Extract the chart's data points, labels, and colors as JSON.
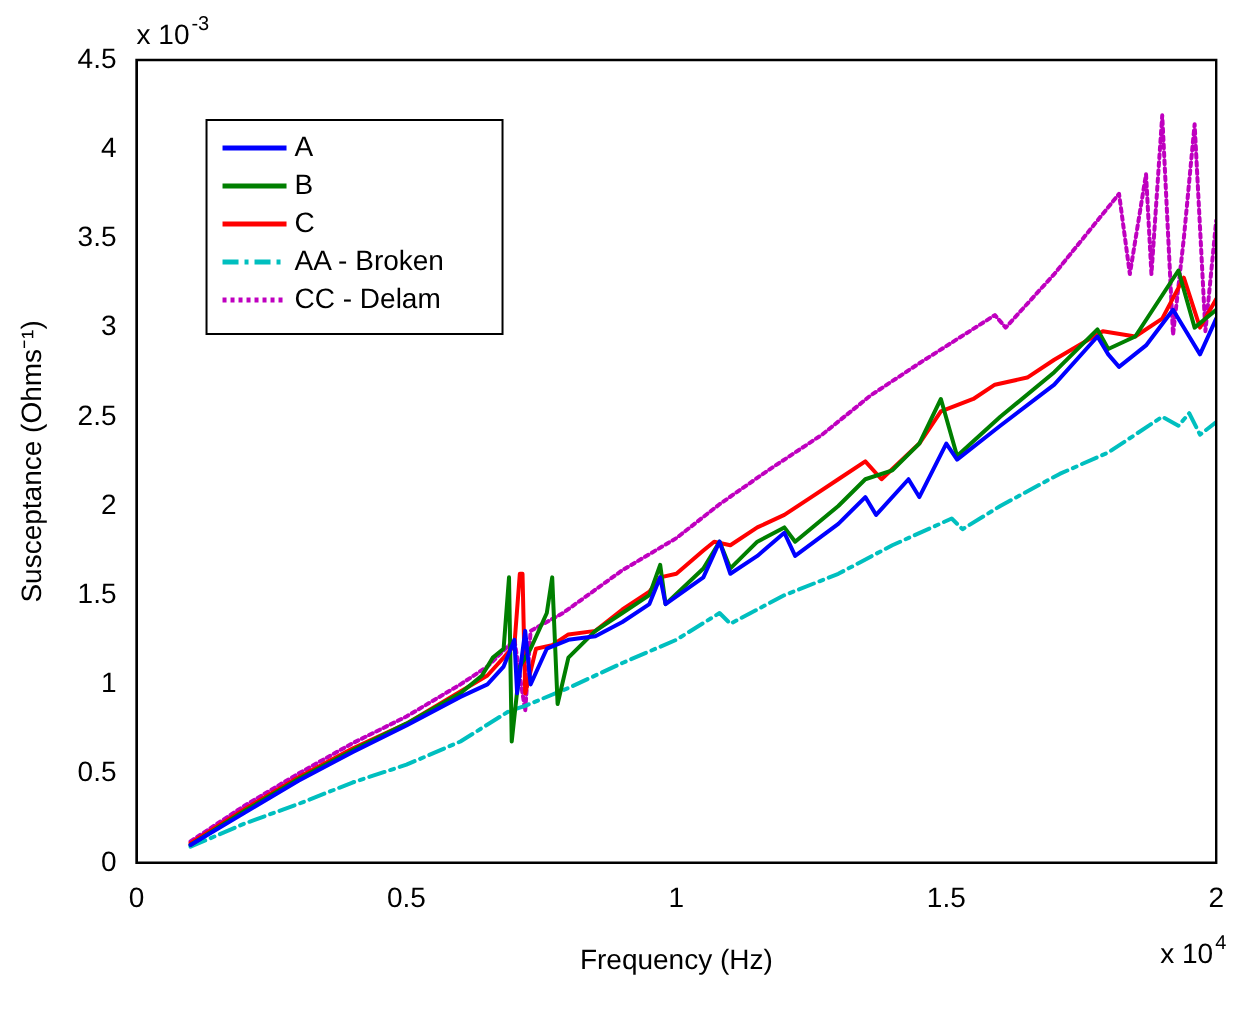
{
  "chart_data": {
    "type": "line",
    "xlabel": "Frequency (Hz)",
    "ylabel": "Susceptance (Ohms⁻¹)",
    "annotations": [
      "x 10$^{-3}$",
      "x 10$^{4}$"
    ],
    "xlim": [
      0,
      2
    ],
    "xticks": [
      0,
      0.5,
      1,
      1.5,
      2
    ],
    "ylim": [
      0,
      4.5
    ],
    "yticks": [
      0,
      0.5,
      1,
      1.5,
      2,
      2.5,
      3,
      3.5,
      4,
      4.5
    ],
    "grid": false,
    "legend": "top left",
    "marker": "none",
    "series": [
      {
        "name": "A",
        "color": "#0000ff",
        "line_style": "solid",
        "x": [
          0.1,
          0.2,
          0.3,
          0.4,
          0.5,
          0.6,
          0.65,
          0.68,
          0.7,
          0.705,
          0.72,
          0.73,
          0.76,
          0.8,
          0.85,
          0.9,
          0.95,
          0.97,
          0.98,
          1.05,
          1.08,
          1.1,
          1.15,
          1.2,
          1.22,
          1.3,
          1.35,
          1.37,
          1.43,
          1.45,
          1.5,
          1.52,
          1.6,
          1.7,
          1.78,
          1.8,
          1.82,
          1.87,
          1.92,
          1.95,
          1.97,
          2.0
        ],
        "values": [
          0.1,
          0.28,
          0.46,
          0.62,
          0.77,
          0.93,
          1.0,
          1.1,
          1.25,
          0.95,
          1.3,
          1.0,
          1.2,
          1.25,
          1.27,
          1.35,
          1.45,
          1.6,
          1.45,
          1.6,
          1.8,
          1.62,
          1.72,
          1.85,
          1.72,
          1.9,
          2.05,
          1.95,
          2.15,
          2.05,
          2.35,
          2.26,
          2.45,
          2.68,
          2.95,
          2.85,
          2.78,
          2.9,
          3.1,
          2.95,
          2.85,
          3.05
        ]
      },
      {
        "name": "B",
        "color": "#007f00",
        "line_style": "solid",
        "x": [
          0.1,
          0.2,
          0.3,
          0.4,
          0.5,
          0.6,
          0.64,
          0.66,
          0.68,
          0.69,
          0.695,
          0.71,
          0.73,
          0.76,
          0.77,
          0.78,
          0.8,
          0.85,
          0.9,
          0.95,
          0.97,
          0.98,
          1.05,
          1.08,
          1.1,
          1.15,
          1.2,
          1.22,
          1.3,
          1.35,
          1.4,
          1.45,
          1.49,
          1.52,
          1.6,
          1.7,
          1.78,
          1.8,
          1.85,
          1.93,
          1.96,
          2.0
        ],
        "values": [
          0.1,
          0.29,
          0.47,
          0.63,
          0.78,
          0.95,
          1.05,
          1.15,
          1.2,
          1.6,
          0.68,
          1.1,
          1.2,
          1.4,
          1.6,
          0.89,
          1.15,
          1.3,
          1.4,
          1.5,
          1.67,
          1.45,
          1.65,
          1.8,
          1.65,
          1.8,
          1.88,
          1.8,
          2.0,
          2.15,
          2.2,
          2.35,
          2.6,
          2.28,
          2.5,
          2.75,
          2.99,
          2.88,
          2.95,
          3.32,
          3.0,
          3.1
        ]
      },
      {
        "name": "C",
        "color": "#ff0000",
        "line_style": "solid",
        "x": [
          0.1,
          0.2,
          0.3,
          0.4,
          0.5,
          0.6,
          0.65,
          0.68,
          0.7,
          0.71,
          0.715,
          0.72,
          0.74,
          0.77,
          0.8,
          0.85,
          0.9,
          0.95,
          0.97,
          1.0,
          1.05,
          1.07,
          1.1,
          1.15,
          1.2,
          1.25,
          1.3,
          1.35,
          1.38,
          1.45,
          1.49,
          1.55,
          1.59,
          1.65,
          1.7,
          1.79,
          1.85,
          1.9,
          1.94,
          1.97,
          2.0
        ],
        "values": [
          0.11,
          0.3,
          0.48,
          0.64,
          0.78,
          0.96,
          1.05,
          1.15,
          1.22,
          1.62,
          1.62,
          0.95,
          1.2,
          1.22,
          1.28,
          1.3,
          1.42,
          1.52,
          1.6,
          1.62,
          1.75,
          1.8,
          1.78,
          1.88,
          1.95,
          2.05,
          2.15,
          2.25,
          2.15,
          2.35,
          2.53,
          2.6,
          2.68,
          2.72,
          2.82,
          2.98,
          2.95,
          3.05,
          3.28,
          3.0,
          3.16
        ]
      },
      {
        "name": "AA - Broken",
        "color": "#00bfbf",
        "line_style": "dashed",
        "x": [
          0.1,
          0.2,
          0.3,
          0.4,
          0.5,
          0.6,
          0.69,
          0.72,
          0.8,
          0.9,
          1.0,
          1.08,
          1.1,
          1.2,
          1.3,
          1.4,
          1.51,
          1.53,
          1.6,
          1.71,
          1.8,
          1.9,
          1.93,
          1.95,
          1.97,
          2.0
        ],
        "values": [
          0.09,
          0.22,
          0.33,
          0.45,
          0.55,
          0.68,
          0.85,
          0.88,
          0.98,
          1.12,
          1.25,
          1.4,
          1.34,
          1.5,
          1.62,
          1.78,
          1.93,
          1.87,
          2.0,
          2.18,
          2.3,
          2.5,
          2.45,
          2.52,
          2.4,
          2.47
        ]
      },
      {
        "name": "CC - Delam",
        "color": "#bf00bf",
        "line_style": "dotted",
        "x": [
          0.1,
          0.2,
          0.3,
          0.4,
          0.5,
          0.6,
          0.65,
          0.7,
          0.72,
          0.73,
          0.79,
          0.9,
          1.0,
          1.08,
          1.17,
          1.27,
          1.36,
          1.45,
          1.59,
          1.61,
          1.7,
          1.82,
          1.84,
          1.87,
          1.88,
          1.9,
          1.92,
          1.94,
          1.96,
          1.98,
          2.0
        ],
        "values": [
          0.12,
          0.32,
          0.5,
          0.67,
          0.82,
          1.0,
          1.1,
          1.25,
          0.85,
          1.3,
          1.4,
          1.64,
          1.82,
          2.01,
          2.2,
          2.4,
          2.62,
          2.8,
          3.07,
          3.0,
          3.3,
          3.75,
          3.3,
          3.86,
          3.3,
          4.19,
          2.96,
          3.5,
          4.14,
          2.98,
          3.6
        ]
      }
    ]
  }
}
